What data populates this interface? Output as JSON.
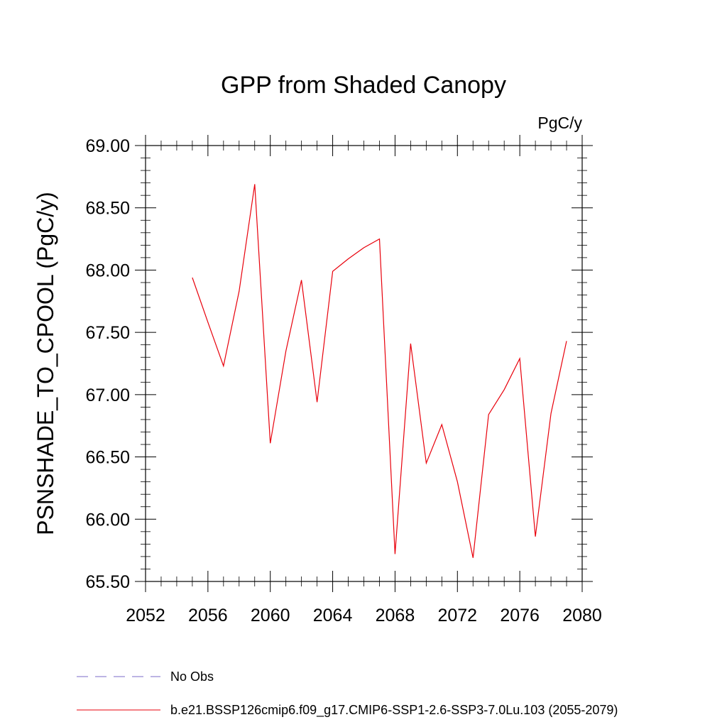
{
  "chart_data": {
    "type": "line",
    "title": "GPP from Shaded Canopy",
    "units": "PgC/y",
    "ylabel": "PSNSHADE_TO_CPOOL  (PgC/y)",
    "xlabel": "",
    "xlim": [
      2052,
      2080
    ],
    "ylim": [
      65.5,
      69.0
    ],
    "xticks": [
      2052,
      2056,
      2060,
      2064,
      2068,
      2072,
      2076,
      2080
    ],
    "yticks": [
      65.5,
      66.0,
      66.5,
      67.0,
      67.5,
      68.0,
      68.5,
      69.0
    ],
    "ytick_labels": [
      "65.50",
      "66.00",
      "66.50",
      "67.00",
      "67.50",
      "68.00",
      "68.50",
      "69.00"
    ],
    "grid": false,
    "series": [
      {
        "name": "b.e21.BSSP126cmip6.f09_g17.CMIP6-SSP1-2.6-SSP3-7.0Lu.103 (2055-2079)",
        "color": "#e8000b",
        "x": [
          2055,
          2056,
          2057,
          2058,
          2059,
          2060,
          2061,
          2062,
          2063,
          2064,
          2065,
          2066,
          2067,
          2068,
          2069,
          2070,
          2071,
          2072,
          2073,
          2074,
          2075,
          2076,
          2077,
          2078,
          2079
        ],
        "values": [
          67.94,
          67.58,
          67.23,
          67.83,
          68.69,
          66.61,
          67.35,
          67.92,
          66.94,
          67.99,
          68.09,
          68.18,
          68.25,
          65.72,
          67.41,
          66.45,
          66.76,
          66.3,
          65.69,
          66.84,
          67.04,
          67.29,
          65.86,
          66.85,
          67.43
        ]
      }
    ],
    "legend": [
      {
        "label": "No Obs",
        "style": "dashed",
        "color": "#7b68c8"
      },
      {
        "label": "b.e21.BSSP126cmip6.f09_g17.CMIP6-SSP1-2.6-SSP3-7.0Lu.103 (2055-2079)",
        "style": "solid",
        "color": "#e8000b"
      }
    ],
    "legend_placement": "bottom"
  }
}
